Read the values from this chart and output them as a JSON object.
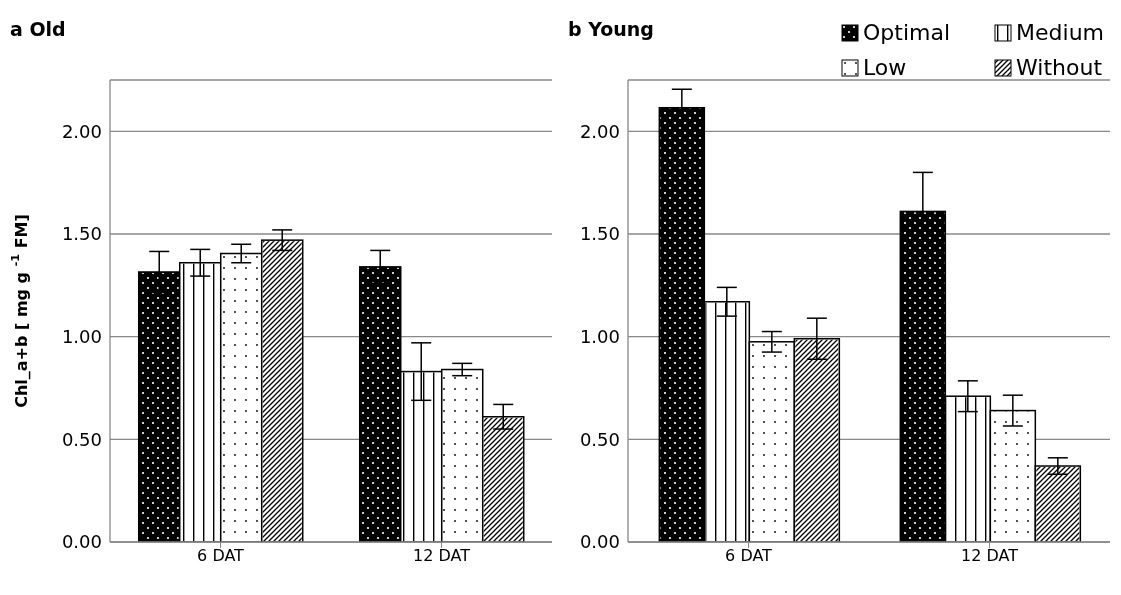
{
  "chart_data": [
    {
      "type": "bar",
      "title": "a Old",
      "ylabel": "Chl_a+b [ mg g $^{-1}$ FM]",
      "categories": [
        "6 DAT",
        "12 DAT"
      ],
      "series": [
        {
          "color": "#000000",
          "values": [
            1.315,
            1.34
          ],
          "errors": [
            0.1,
            0.08
          ]
        },
        {
          "color": "#ffffff",
          "values": [
            1.36,
            0.83
          ],
          "errors": [
            0.065,
            0.14
          ]
        },
        {
          "color": "#ffffff",
          "values": [
            1.405,
            0.84
          ],
          "errors": [
            0.045,
            0.03
          ]
        },
        {
          "color": "#ffffff",
          "values": [
            1.47,
            0.61
          ],
          "errors": [
            0.05,
            0.06
          ]
        }
      ],
      "ylim": [
        0,
        2.25
      ],
      "yticks": [
        {
          "value": 0,
          "label": "0.00"
        },
        {
          "value": 0.5,
          "label": "0.50"
        },
        {
          "value": 1,
          "label": "1.00"
        },
        {
          "value": 1.5,
          "label": "1.50"
        },
        {
          "value": 2,
          "label": "2.00"
        }
      ],
      "grid": "y",
      "legend": false
    },
    {
      "type": "bar",
      "title": "b Young",
      "categories": [
        "6 DAT",
        "12 DAT"
      ],
      "series": [
        {
          "name": "Optimal",
          "color": "#000000",
          "values": [
            2.115,
            1.61
          ],
          "errors": [
            0.09,
            0.19
          ]
        },
        {
          "name": "Medium",
          "color": "#ffffff",
          "values": [
            1.17,
            0.71
          ],
          "errors": [
            0.07,
            0.075
          ]
        },
        {
          "name": "Low",
          "color": "#ffffff",
          "values": [
            0.975,
            0.64
          ],
          "errors": [
            0.05,
            0.075
          ]
        },
        {
          "name": "Without",
          "color": "#ffffff",
          "values": [
            0.99,
            0.37
          ],
          "errors": [
            0.1,
            0.04
          ]
        }
      ],
      "ylim": [
        0,
        2.25
      ],
      "yticks": [
        {
          "value": 0,
          "label": "0.00"
        },
        {
          "value": 0.5,
          "label": "0.50"
        },
        {
          "value": 1,
          "label": "1.00"
        },
        {
          "value": 1.5,
          "label": "1.50"
        },
        {
          "value": 2,
          "label": "2.00"
        }
      ],
      "grid": "y",
      "legend": "top right"
    }
  ]
}
